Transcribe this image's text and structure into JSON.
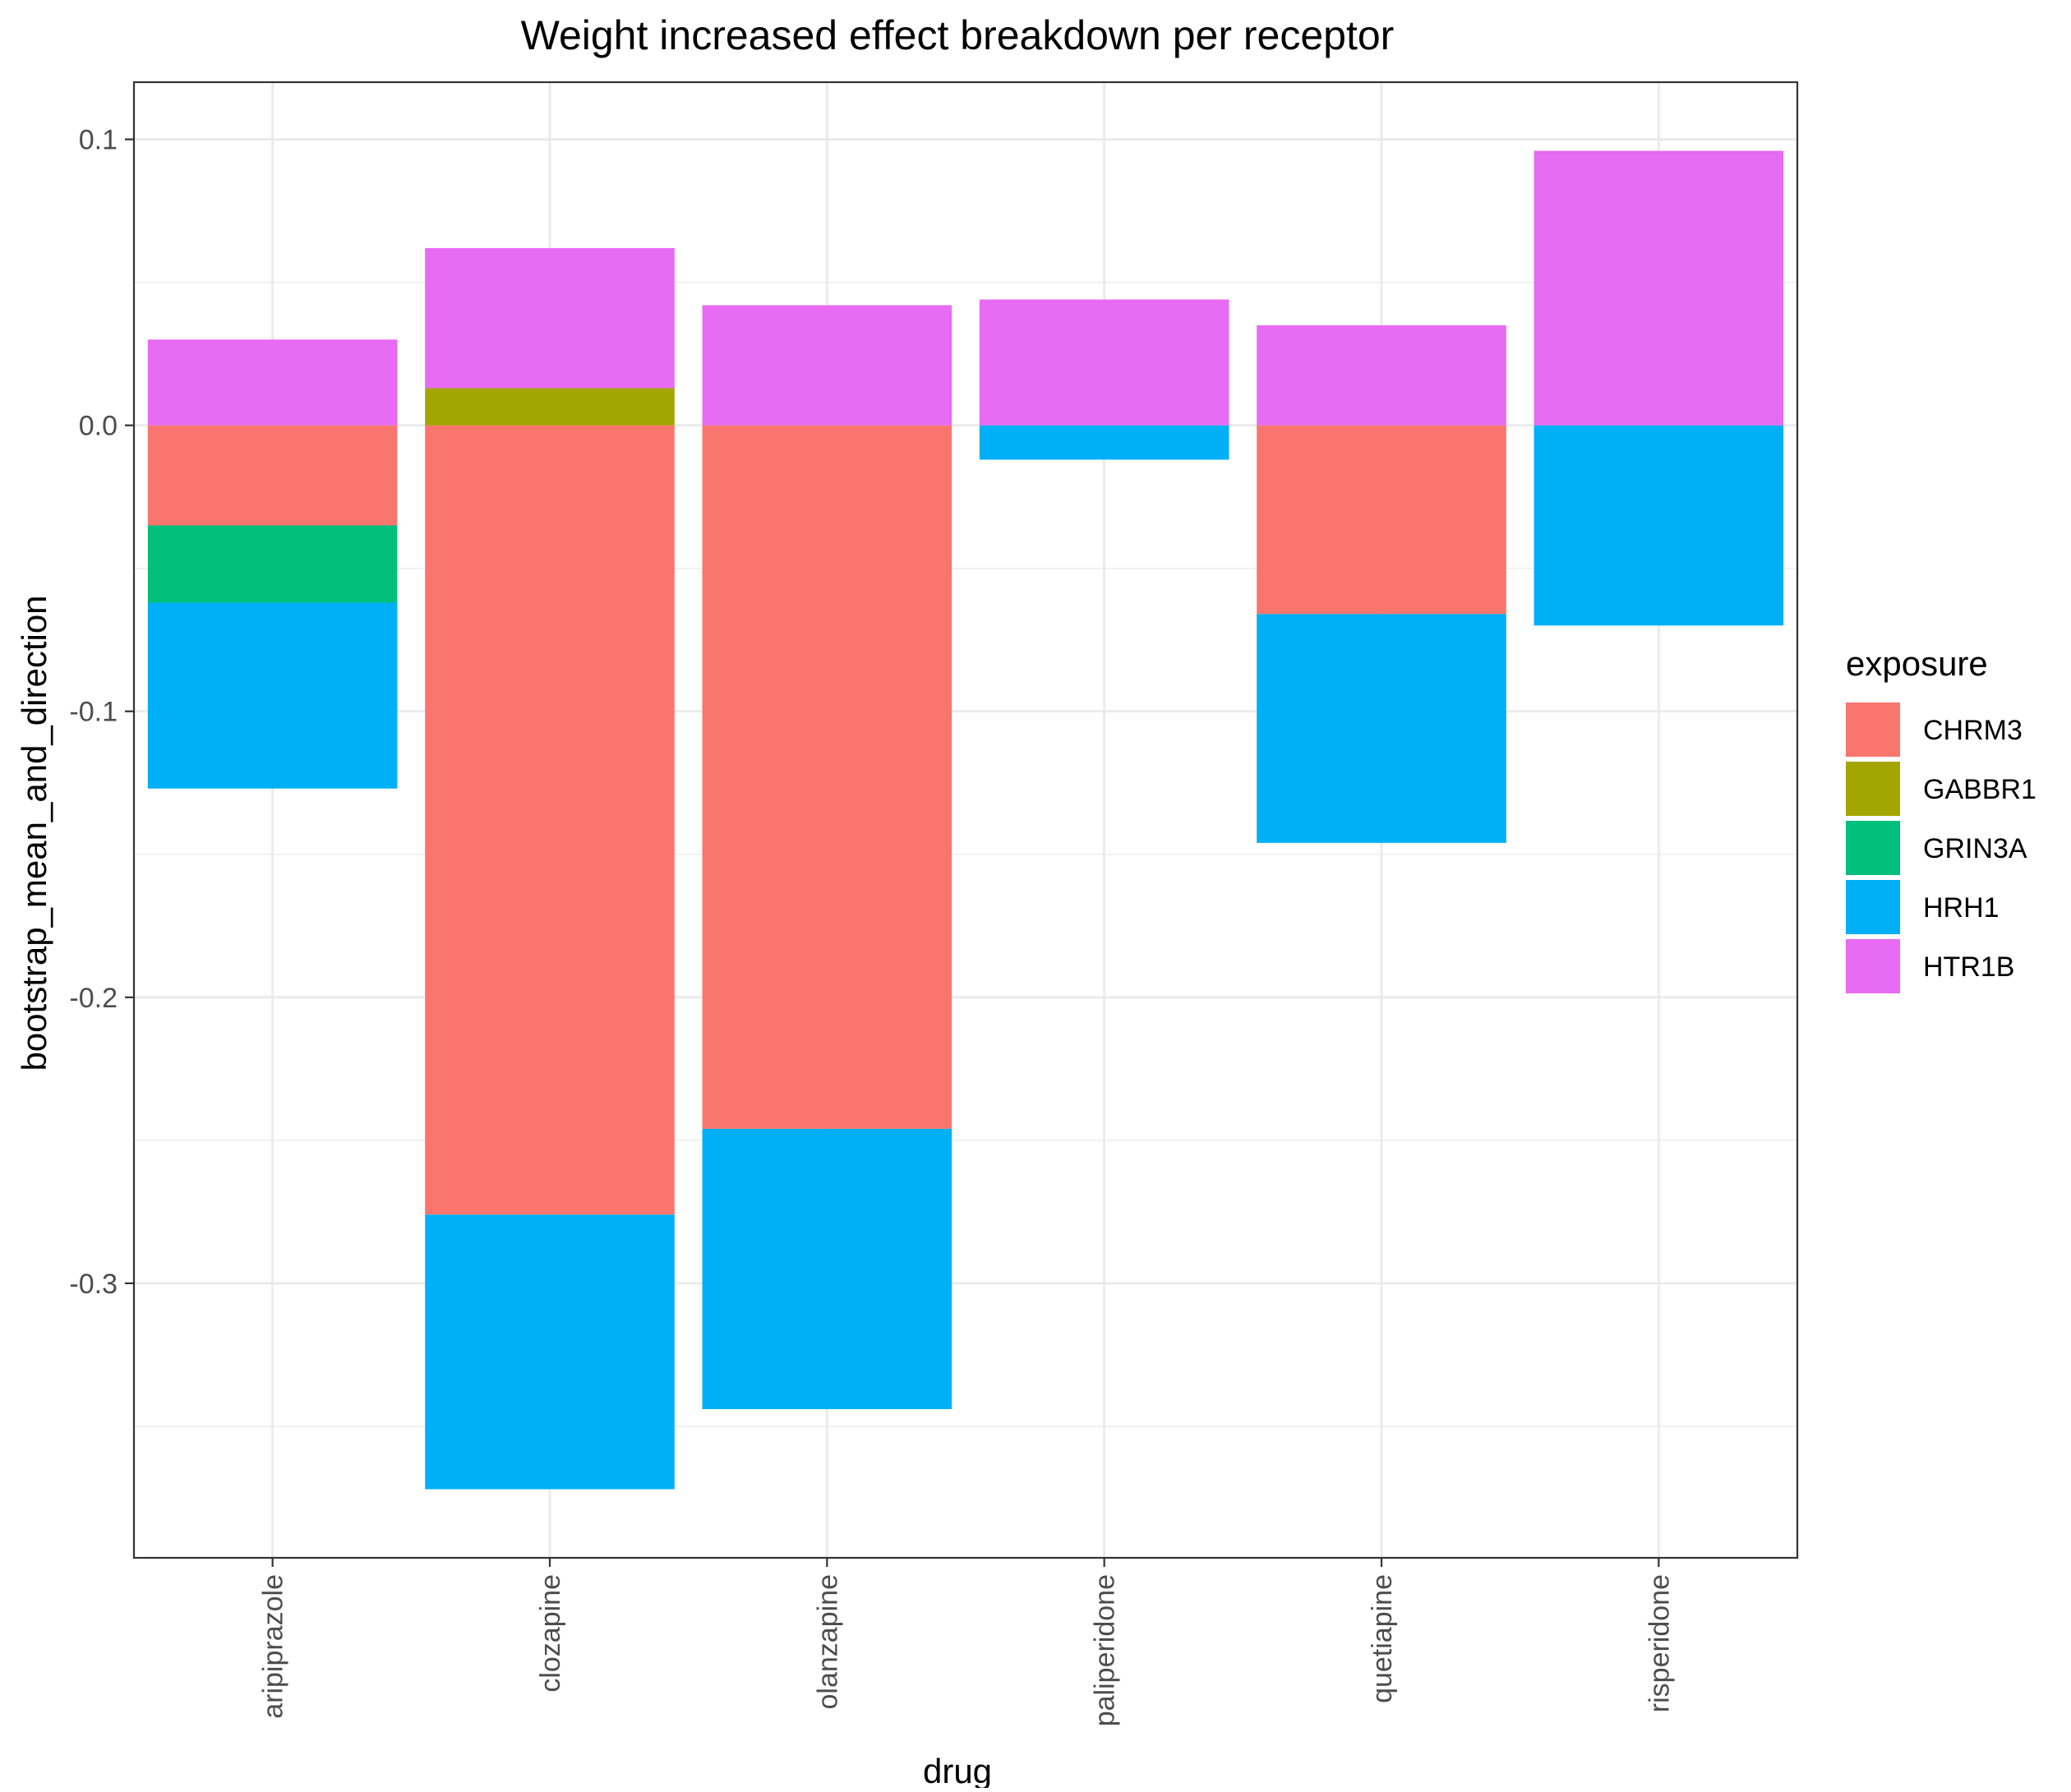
{
  "chart_data": {
    "type": "bar",
    "stacked": true,
    "title": "Weight increased effect breakdown per receptor",
    "xlabel": "drug",
    "ylabel": "bootstrap_mean_and_direction",
    "categories": [
      "aripiprazole",
      "clozapine",
      "olanzapine",
      "paliperidone",
      "quetiapine",
      "risperidone"
    ],
    "ylim": [
      -0.396,
      0.12
    ],
    "yticks": [
      0.1,
      0.0,
      -0.1,
      -0.2,
      -0.3
    ],
    "ytick_labels": [
      "0.1",
      "0.0",
      "-0.1",
      "-0.2",
      "-0.3"
    ],
    "grid": true,
    "legend": {
      "title": "exposure",
      "position": "right"
    },
    "series": [
      {
        "name": "CHRM3",
        "color": "#F8766D",
        "values": [
          -0.035,
          -0.276,
          -0.246,
          0,
          -0.066,
          0
        ]
      },
      {
        "name": "GABBR1",
        "color": "#A3A500",
        "values": [
          0,
          0.013,
          0,
          0,
          0,
          0
        ]
      },
      {
        "name": "GRIN3A",
        "color": "#00BF7D",
        "values": [
          -0.027,
          0,
          0,
          0,
          0,
          0
        ]
      },
      {
        "name": "HRH1",
        "color": "#00B0F6",
        "values": [
          -0.065,
          -0.096,
          -0.098,
          -0.012,
          -0.08,
          -0.07
        ]
      },
      {
        "name": "HTR1B",
        "color": "#E76BF3",
        "values": [
          0.03,
          0.049,
          0.042,
          0.044,
          0.035,
          0.096
        ]
      }
    ]
  }
}
